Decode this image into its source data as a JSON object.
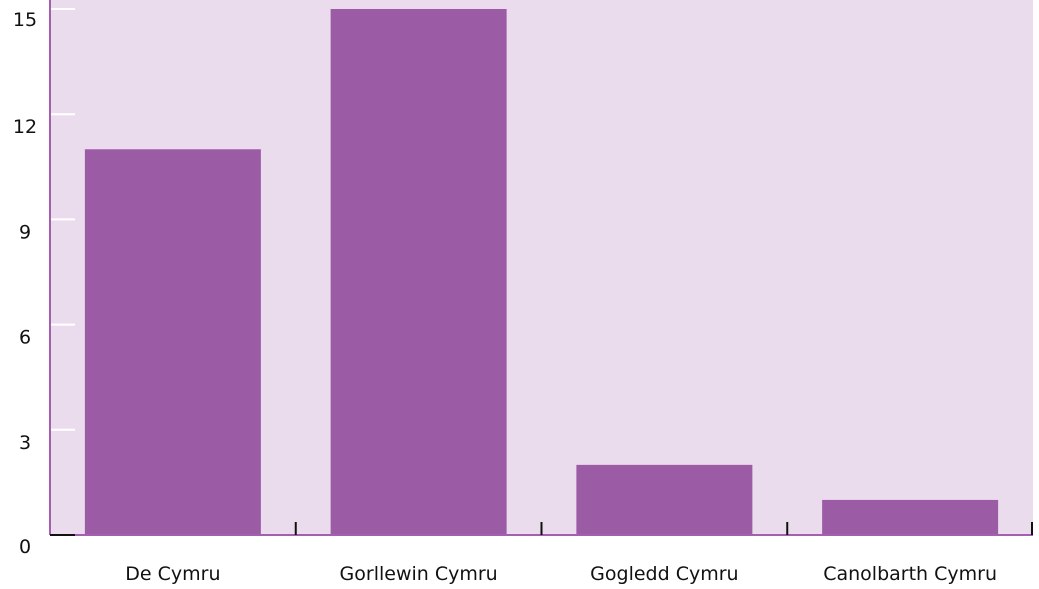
{
  "chart_data": {
    "type": "bar",
    "title": "",
    "xlabel": "",
    "ylabel": "",
    "categories": [
      "De Cymru",
      "Gorllewin Cymru",
      "Gogledd Cymru",
      "Canolbarth Cymru"
    ],
    "values": [
      11,
      15,
      2,
      1
    ],
    "ylim": [
      0,
      15
    ],
    "yticks": [
      "0",
      "3",
      "6",
      "9",
      "12",
      "15"
    ],
    "grid": false,
    "legend": "none"
  },
  "colors": {
    "plot_background": "#eadcec",
    "bar": "#9b5ba5",
    "y_axis": "#a55fb0",
    "x_axis": "#a55fb0",
    "tick_mark_x": "#111111",
    "tick_mark_y": "#ffffff"
  }
}
